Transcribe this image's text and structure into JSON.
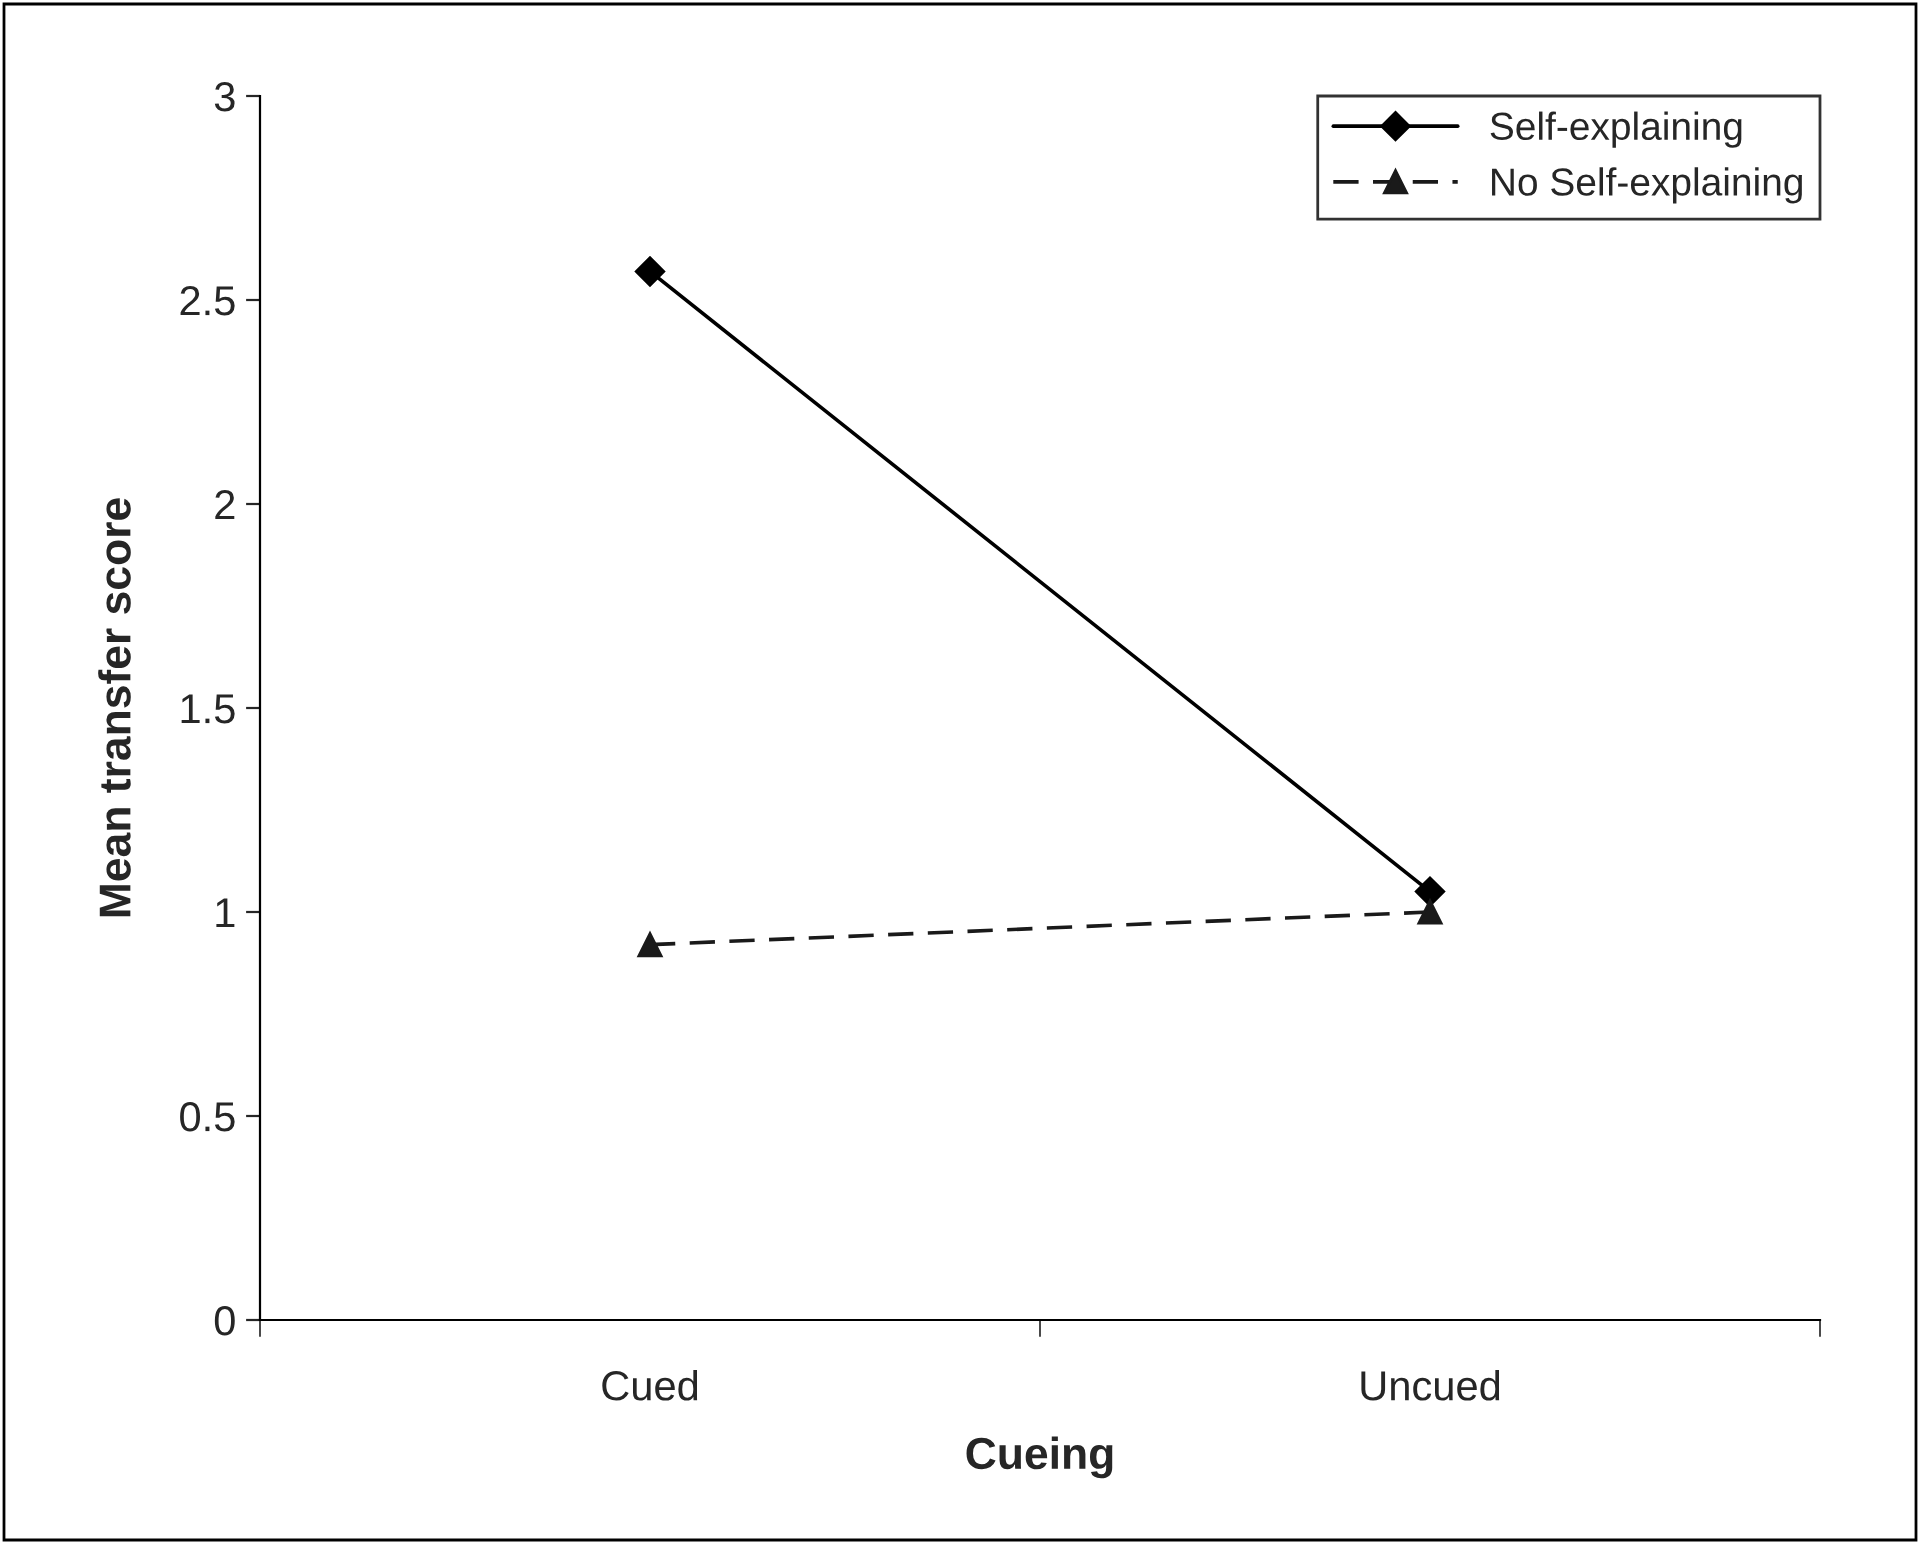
{
  "chart_data": {
    "type": "line",
    "xlabel": "Cueing",
    "ylabel": "Mean transfer score",
    "categories": [
      "Cued",
      "Uncued"
    ],
    "series": [
      {
        "name": "Self-explaining",
        "color": "#000000",
        "values": [
          2.57,
          1.05
        ],
        "marker": "diamond",
        "line_style": "solid"
      },
      {
        "name": "No Self-explaining",
        "color": "#1a1a1a",
        "values": [
          0.92,
          1.0
        ],
        "marker": "triangle",
        "line_style": "dashed"
      }
    ],
    "ylim": [
      0,
      3
    ],
    "yticks": [
      0,
      0.5,
      1,
      1.5,
      2,
      2.5,
      3
    ],
    "grid": false,
    "legend": "top right"
  }
}
